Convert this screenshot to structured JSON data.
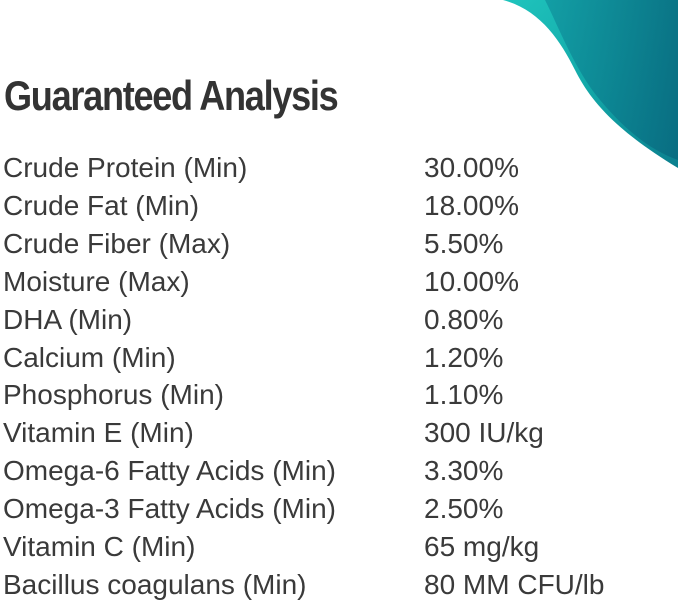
{
  "title": "Guaranteed Analysis",
  "accent_color": "#14a9a6",
  "rows": [
    {
      "name": "Crude Protein (Min)",
      "value": "30.00%"
    },
    {
      "name": "Crude Fat (Min)",
      "value": "18.00%"
    },
    {
      "name": "Crude Fiber (Max)",
      "value": "5.50%"
    },
    {
      "name": "Moisture (Max)",
      "value": "10.00%"
    },
    {
      "name": "DHA (Min)",
      "value": "0.80%"
    },
    {
      "name": "Calcium (Min)",
      "value": "1.20%"
    },
    {
      "name": "Phosphorus (Min)",
      "value": "1.10%"
    },
    {
      "name": "Vitamin E (Min)",
      "value": "300 IU/kg"
    },
    {
      "name": "Omega-6 Fatty Acids (Min)",
      "value": "3.30%"
    },
    {
      "name": "Omega-3 Fatty Acids (Min)",
      "value": "2.50%"
    },
    {
      "name": "Vitamin C (Min)",
      "value": "65 mg/kg"
    },
    {
      "name": "Bacillus coagulans (Min)",
      "value": "80 MM CFU/lb"
    }
  ]
}
